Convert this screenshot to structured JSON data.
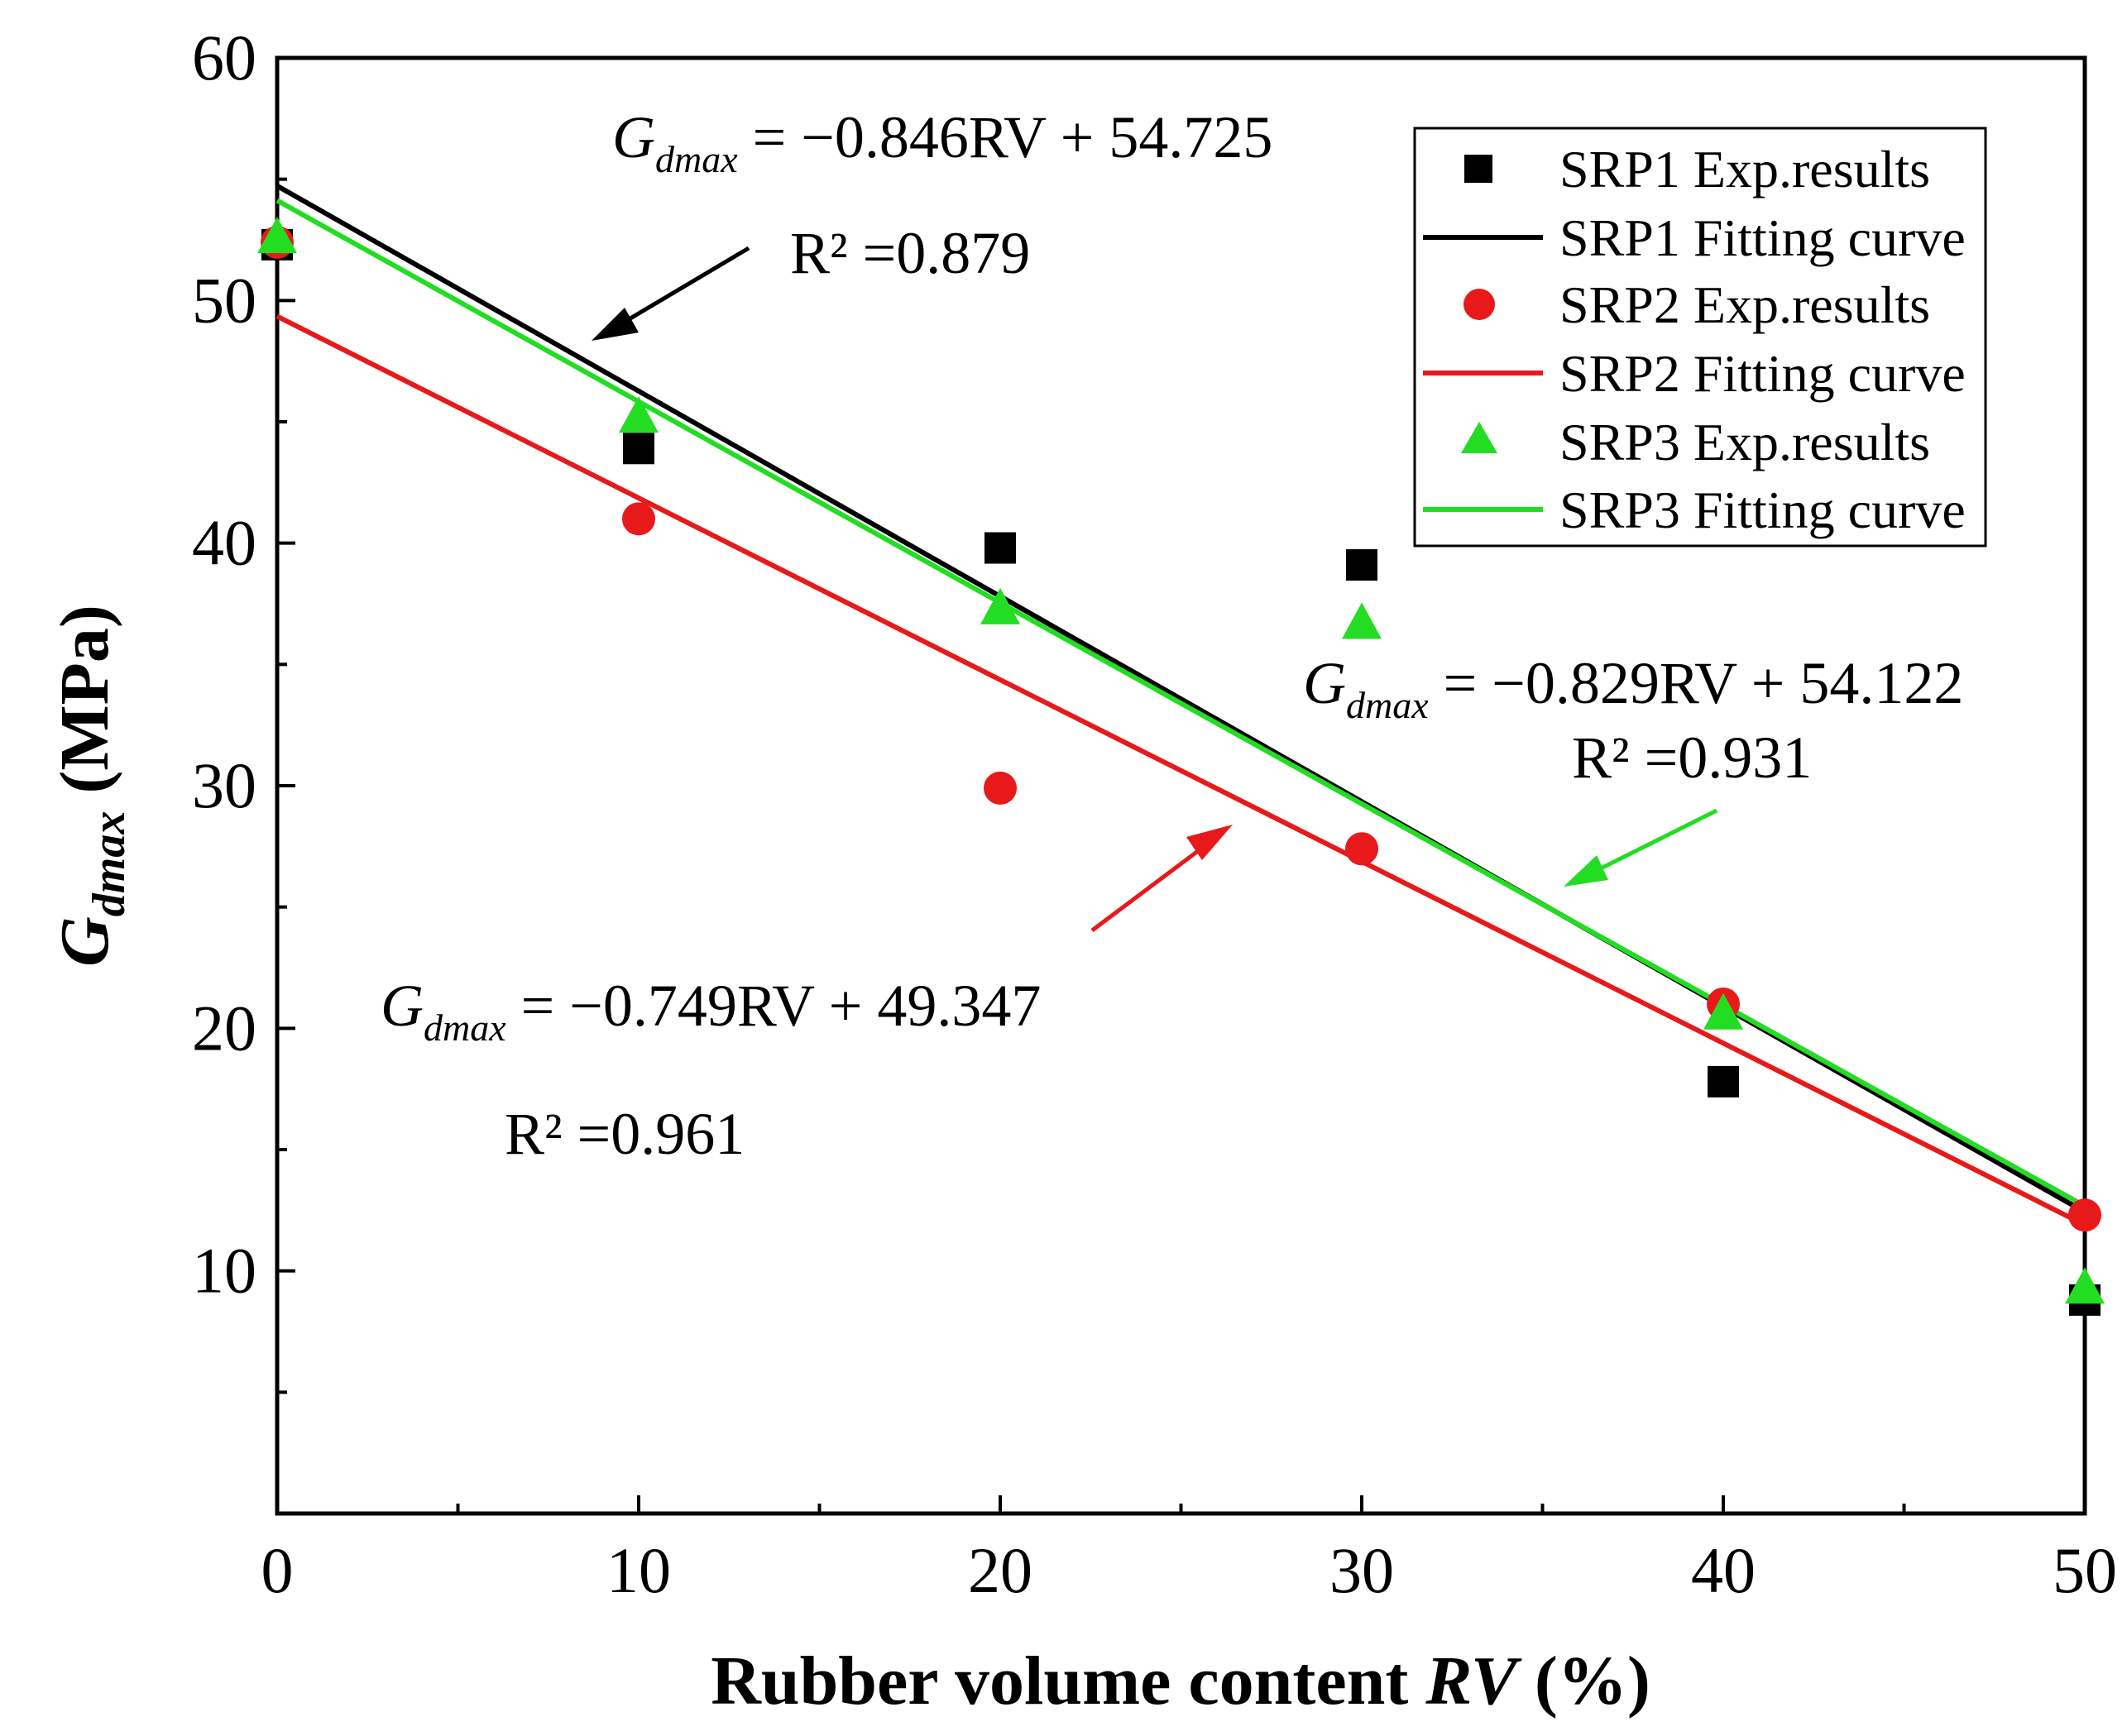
{
  "chart_data": {
    "type": "scatter",
    "x_axis": {
      "label_prefix": "Rubber volume content ",
      "label_var": "RV",
      "label_suffix": " (%)",
      "range": [
        0,
        50
      ],
      "ticks": [
        0,
        10,
        20,
        30,
        40,
        50
      ],
      "minor_ticks": [
        5,
        15,
        25,
        35,
        45
      ]
    },
    "y_axis": {
      "label_base": "G",
      "label_sub": "dmax",
      "label_suffix": " (MPa)",
      "range": [
        0,
        60
      ],
      "ticks": [
        10,
        20,
        30,
        40,
        50,
        60
      ],
      "minor_ticks": [
        5,
        15,
        25,
        35,
        45,
        55
      ]
    },
    "series": [
      {
        "id": "srp1",
        "name": "SRP1",
        "exp_label": "SRP1 Exp.results",
        "fit_label": "SRP1 Fitting curve",
        "marker": "square",
        "color": "#000000",
        "x": [
          0,
          10,
          20,
          30,
          40,
          50
        ],
        "y": [
          52.3,
          43.9,
          39.8,
          39.1,
          17.8,
          8.8
        ],
        "fit": {
          "slope": -0.846,
          "intercept": 54.725,
          "r2": "0.879"
        },
        "equation": {
          "lhs": "G",
          "sub": "dmax",
          "rhs": " = −0.846RV + 54.725",
          "r2_text": "R² =0.879"
        }
      },
      {
        "id": "srp2",
        "name": "SRP2",
        "exp_label": "SRP2 Exp.results",
        "fit_label": "SRP2 Fitting curve",
        "marker": "circle",
        "color": "#e8191b",
        "x": [
          0,
          10,
          20,
          30,
          40,
          50
        ],
        "y": [
          52.4,
          41.0,
          29.9,
          27.4,
          21.0,
          12.3
        ],
        "fit": {
          "slope": -0.749,
          "intercept": 49.347,
          "r2": "0.961"
        },
        "equation": {
          "lhs": "G",
          "sub": "dmax",
          "rhs": " = −0.749RV + 49.347",
          "r2_text": "R² =0.961"
        }
      },
      {
        "id": "srp3",
        "name": "SRP3",
        "exp_label": "SRP3 Exp.results",
        "fit_label": "SRP3 Fitting curve",
        "marker": "triangle",
        "color": "#22dd22",
        "x": [
          0,
          10,
          20,
          30,
          40,
          50
        ],
        "y": [
          52.6,
          45.2,
          37.3,
          36.7,
          20.6,
          9.3
        ],
        "fit": {
          "slope": -0.829,
          "intercept": 54.122,
          "r2": "0.931"
        },
        "equation": {
          "lhs": "G",
          "sub": "dmax",
          "rhs": " = −0.829RV + 54.122",
          "r2_text": "R² =0.931"
        }
      }
    ],
    "legend": {
      "placement": "top-right"
    }
  }
}
